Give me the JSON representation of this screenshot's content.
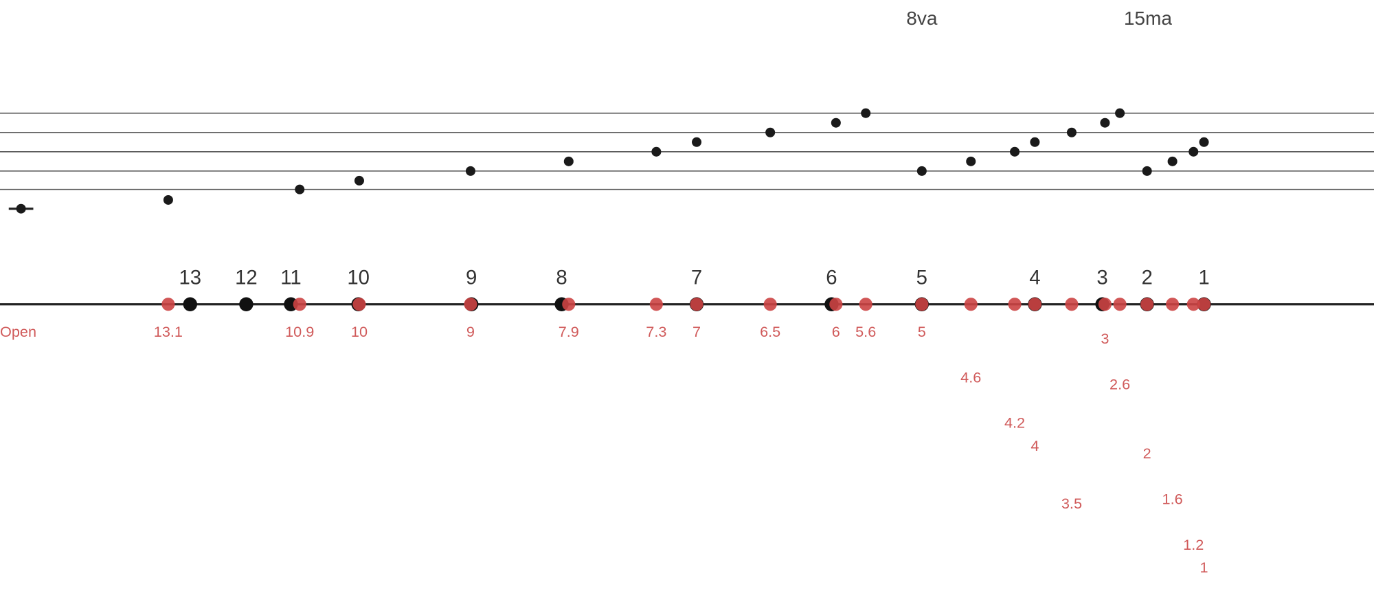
{
  "octave_marks": [
    "8va",
    "15ma"
  ],
  "frets": [
    "13",
    "12",
    "11",
    "10",
    "9",
    "8",
    "7",
    "6",
    "5",
    "4",
    "3",
    "2",
    "1"
  ],
  "positions": [
    "Open",
    "13.1",
    "10.9",
    "10",
    "9",
    "7.9",
    "7.3",
    "7",
    "6.5",
    "6",
    "5.6",
    "5",
    "4.6",
    "4.2",
    "4",
    "3.5",
    "3",
    "2.6",
    "2",
    "1.6",
    "1.2",
    "1"
  ]
}
